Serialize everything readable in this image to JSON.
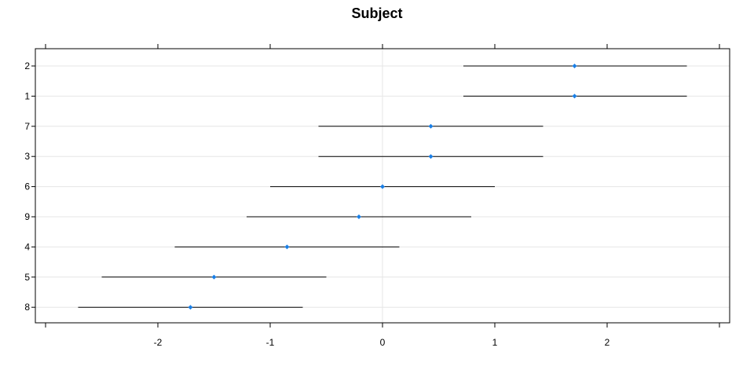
{
  "chart_data": {
    "type": "dotplot",
    "title": "Subject",
    "xlabel": "",
    "ylabel": "",
    "xlim": [
      -3,
      3
    ],
    "x_ticks": [
      -2,
      -1,
      0,
      1,
      2
    ],
    "grid": true,
    "categories": [
      "2",
      "1",
      "7",
      "3",
      "6",
      "9",
      "4",
      "5",
      "8"
    ],
    "points": [
      {
        "label": "2",
        "estimate": 1.71,
        "lower": 0.72,
        "upper": 2.71
      },
      {
        "label": "1",
        "estimate": 1.71,
        "lower": 0.72,
        "upper": 2.71
      },
      {
        "label": "7",
        "estimate": 0.43,
        "lower": -0.57,
        "upper": 1.43
      },
      {
        "label": "3",
        "estimate": 0.43,
        "lower": -0.57,
        "upper": 1.43
      },
      {
        "label": "6",
        "estimate": 0.0,
        "lower": -1.0,
        "upper": 1.0
      },
      {
        "label": "9",
        "estimate": -0.21,
        "lower": -1.21,
        "upper": 0.79
      },
      {
        "label": "4",
        "estimate": -0.85,
        "lower": -1.85,
        "upper": 0.15
      },
      {
        "label": "5",
        "estimate": -1.5,
        "lower": -2.5,
        "upper": -0.5
      },
      {
        "label": "8",
        "estimate": -1.71,
        "lower": -2.71,
        "upper": -0.71
      }
    ],
    "colors": {
      "point": "#1a7fe6",
      "interval": "#000000",
      "grid": "#e6e6e6",
      "frame": "#000000"
    }
  }
}
